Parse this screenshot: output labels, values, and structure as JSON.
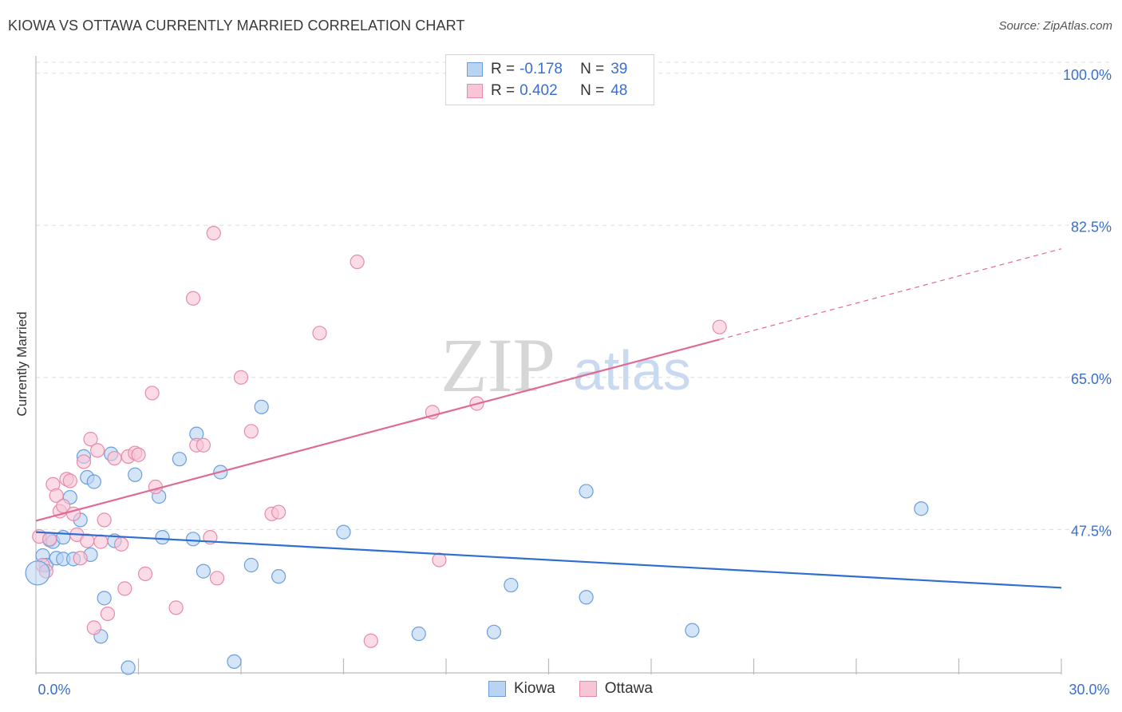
{
  "title": "KIOWA VS OTTAWA CURRENTLY MARRIED CORRELATION CHART",
  "source": "Source: ZipAtlas.com",
  "watermark": {
    "zip": "ZIP",
    "atlas": "atlas"
  },
  "legend": {
    "kiowa": {
      "r_label": "R =",
      "r_value": "-0.178",
      "n_label": "N =",
      "n_value": "39"
    },
    "ottawa": {
      "r_label": "R =",
      "r_value": "0.402",
      "n_label": "N =",
      "n_value": "48"
    }
  },
  "bottom_legend": {
    "kiowa": "Kiowa",
    "ottawa": "Ottawa"
  },
  "colors": {
    "kiowa_fill": "#b9d3f3",
    "kiowa_stroke": "#6a9ee0",
    "kiowa_line": "#2f6fd0",
    "ottawa_fill": "#f8c5d5",
    "ottawa_stroke": "#e88aaa",
    "ottawa_line": "#e06a95",
    "accent_text": "#3a6fd0",
    "grid": "#dddddd"
  },
  "chart_data": {
    "type": "scatter",
    "title": "KIOWA VS OTTAWA CURRENTLY MARRIED CORRELATION CHART",
    "xlabel": "",
    "ylabel": "Currently Married",
    "xlim": [
      0,
      30
    ],
    "ylim": [
      31,
      102
    ],
    "x_tick_labels": [
      "0.0%",
      "30.0%"
    ],
    "y_ticks": [
      47.5,
      65.0,
      82.5,
      100.0
    ],
    "y_tick_labels": [
      "47.5%",
      "65.0%",
      "82.5%",
      "100.0%"
    ],
    "x_minor_ticks": [
      0,
      3,
      6,
      9,
      12,
      15,
      18,
      21,
      24,
      27,
      30
    ],
    "series": [
      {
        "name": "Kiowa",
        "r": -0.178,
        "n": 39,
        "trend": {
          "x0": 0,
          "y0": 47.2,
          "x1": 30,
          "y1": 40.8,
          "solid_until": 30
        },
        "points": [
          [
            0.2,
            44.5
          ],
          [
            0.3,
            43.4
          ],
          [
            0.4,
            46.3
          ],
          [
            0.5,
            46.1
          ],
          [
            0.6,
            44.2
          ],
          [
            0.8,
            46.6
          ],
          [
            0.8,
            44.1
          ],
          [
            1.0,
            51.2
          ],
          [
            1.1,
            44.1
          ],
          [
            1.3,
            48.6
          ],
          [
            1.4,
            55.9
          ],
          [
            1.5,
            53.5
          ],
          [
            1.6,
            44.6
          ],
          [
            1.7,
            53.0
          ],
          [
            1.9,
            35.2
          ],
          [
            2.0,
            39.6
          ],
          [
            2.2,
            56.2
          ],
          [
            2.3,
            46.2
          ],
          [
            2.7,
            31.6
          ],
          [
            2.9,
            53.8
          ],
          [
            3.6,
            51.3
          ],
          [
            3.7,
            46.6
          ],
          [
            4.2,
            55.6
          ],
          [
            4.6,
            46.4
          ],
          [
            4.7,
            58.5
          ],
          [
            4.9,
            42.7
          ],
          [
            5.4,
            54.1
          ],
          [
            5.8,
            32.3
          ],
          [
            6.3,
            43.4
          ],
          [
            6.6,
            61.6
          ],
          [
            7.1,
            42.1
          ],
          [
            9.0,
            47.2
          ],
          [
            11.2,
            35.5
          ],
          [
            13.4,
            35.7
          ],
          [
            13.9,
            41.1
          ],
          [
            16.1,
            51.9
          ],
          [
            16.1,
            39.7
          ],
          [
            19.2,
            35.9
          ],
          [
            25.9,
            49.9
          ]
        ]
      },
      {
        "name": "Ottawa",
        "r": 0.402,
        "n": 48,
        "trend": {
          "x0": 0,
          "y0": 48.5,
          "x1": 30,
          "y1": 79.8,
          "solid_until": 20.0
        },
        "points": [
          [
            0.1,
            46.7
          ],
          [
            0.2,
            43.4
          ],
          [
            0.3,
            42.7
          ],
          [
            0.4,
            46.4
          ],
          [
            0.5,
            52.7
          ],
          [
            0.6,
            51.4
          ],
          [
            0.7,
            49.6
          ],
          [
            0.8,
            50.2
          ],
          [
            0.9,
            53.3
          ],
          [
            1.0,
            53.1
          ],
          [
            1.1,
            49.3
          ],
          [
            1.2,
            46.9
          ],
          [
            1.3,
            44.2
          ],
          [
            1.4,
            55.3
          ],
          [
            1.5,
            46.2
          ],
          [
            1.6,
            57.9
          ],
          [
            1.7,
            36.2
          ],
          [
            1.8,
            56.6
          ],
          [
            1.9,
            46.1
          ],
          [
            2.0,
            48.6
          ],
          [
            2.1,
            37.8
          ],
          [
            2.3,
            55.7
          ],
          [
            2.5,
            45.8
          ],
          [
            2.6,
            40.7
          ],
          [
            2.7,
            55.9
          ],
          [
            2.9,
            56.3
          ],
          [
            3.0,
            56.1
          ],
          [
            3.2,
            42.4
          ],
          [
            3.4,
            63.2
          ],
          [
            3.5,
            52.4
          ],
          [
            4.1,
            38.5
          ],
          [
            4.6,
            74.1
          ],
          [
            4.7,
            57.2
          ],
          [
            4.9,
            57.2
          ],
          [
            5.1,
            46.6
          ],
          [
            5.2,
            81.6
          ],
          [
            5.3,
            41.9
          ],
          [
            6.0,
            65.0
          ],
          [
            6.3,
            58.8
          ],
          [
            6.9,
            49.3
          ],
          [
            7.1,
            49.5
          ],
          [
            8.3,
            70.1
          ],
          [
            9.4,
            78.3
          ],
          [
            9.8,
            34.7
          ],
          [
            11.6,
            61.0
          ],
          [
            11.8,
            44.0
          ],
          [
            12.9,
            62.0
          ],
          [
            20.0,
            70.8
          ]
        ]
      }
    ]
  }
}
